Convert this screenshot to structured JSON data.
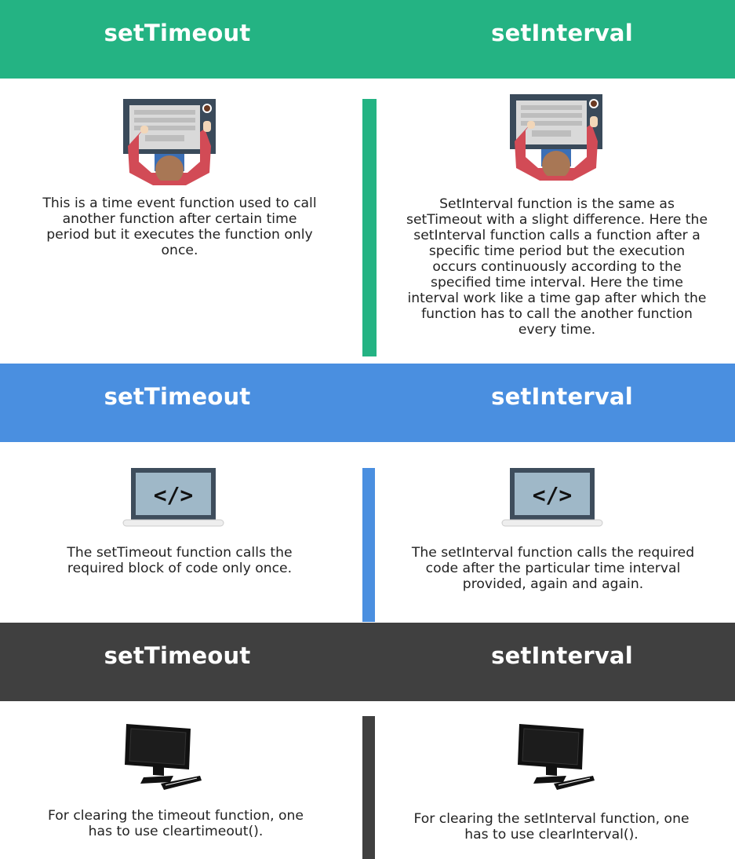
{
  "colors": {
    "section1": "#24b383",
    "section2": "#4a8fe0",
    "section3": "#404040"
  },
  "sections": [
    {
      "header": {
        "left": "setTimeout",
        "right": "setInterval"
      },
      "icon": "person-at-laptop-icon",
      "left_text": "This is a time event function used to call another function after certain time period but it executes the function only once.",
      "right_text": "SetInterval function is the same as setTimeout with a slight difference. Here the setInterval function calls a function after a specific time period but the execution occurs continuously according to the specified time interval. Here the time interval work like a time gap after which the function has to call the another function every time."
    },
    {
      "header": {
        "left": "setTimeout",
        "right": "setInterval"
      },
      "icon": "code-laptop-icon",
      "left_text": "The setTimeout function calls the required block of code only once.",
      "right_text": "The setInterval function calls the required code after the particular time interval provided, again and again."
    },
    {
      "header": {
        "left": "setTimeout",
        "right": "setInterval"
      },
      "icon": "desktop-monitor-icon",
      "left_text": "For clearing the timeout function, one has to use cleartimeout().",
      "right_text": "For clearing the setInterval function, one has to use clearInterval()."
    }
  ]
}
